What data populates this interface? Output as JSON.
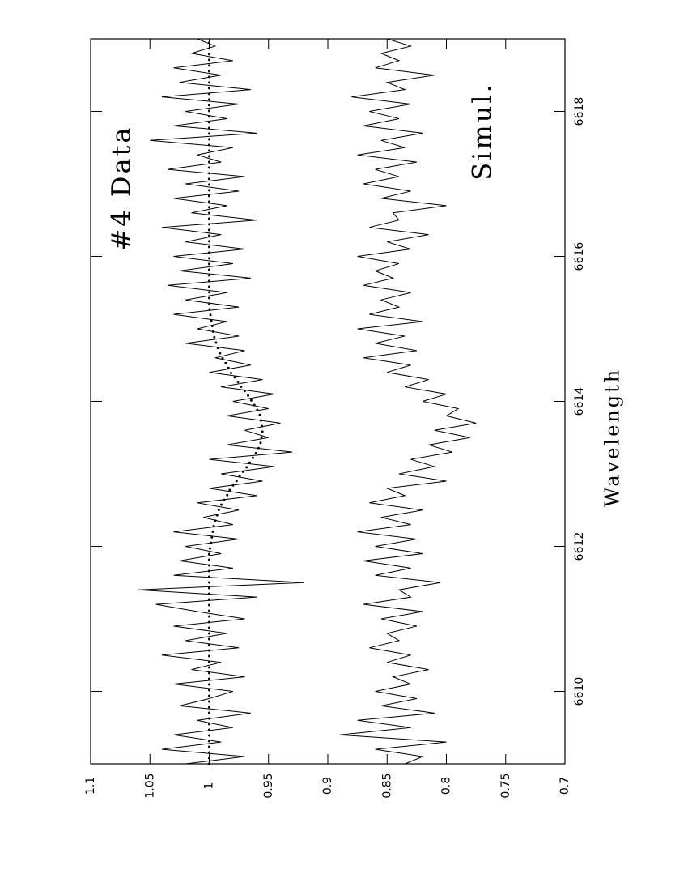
{
  "chart_data": {
    "type": "line",
    "xlabel": "Wavelength",
    "x": [
      6609.0,
      6609.1,
      6609.2,
      6609.3,
      6609.4,
      6609.5,
      6609.6,
      6609.7,
      6609.8,
      6609.9,
      6610.0,
      6610.1,
      6610.2,
      6610.3,
      6610.4,
      6610.5,
      6610.6,
      6610.7,
      6610.8,
      6610.9,
      6611.0,
      6611.1,
      6611.2,
      6611.3,
      6611.4,
      6611.5,
      6611.6,
      6611.7,
      6611.8,
      6611.9,
      6612.0,
      6612.1,
      6612.2,
      6612.3,
      6612.4,
      6612.5,
      6612.6,
      6612.7,
      6612.8,
      6612.9,
      6613.0,
      6613.1,
      6613.2,
      6613.3,
      6613.4,
      6613.5,
      6613.6,
      6613.7,
      6613.8,
      6613.9,
      6614.0,
      6614.1,
      6614.2,
      6614.3,
      6614.4,
      6614.5,
      6614.6,
      6614.7,
      6614.8,
      6614.9,
      6615.0,
      6615.1,
      6615.2,
      6615.3,
      6615.4,
      6615.5,
      6615.6,
      6615.7,
      6615.8,
      6615.9,
      6616.0,
      6616.1,
      6616.2,
      6616.3,
      6616.4,
      6616.5,
      6616.6,
      6616.7,
      6616.8,
      6616.9,
      6617.0,
      6617.1,
      6617.2,
      6617.3,
      6617.4,
      6617.5,
      6617.6,
      6617.7,
      6617.8,
      6617.9,
      6618.0,
      6618.1,
      6618.2,
      6618.3,
      6618.4,
      6618.5,
      6618.6,
      6618.7,
      6618.8,
      6618.9,
      6619.0
    ],
    "series": [
      {
        "name": "#4 Data",
        "color": "#000000",
        "style": "solid",
        "values": [
          1.02,
          0.97,
          1.04,
          0.99,
          1.03,
          0.98,
          1.01,
          0.965,
          1.025,
          1.0,
          0.98,
          1.03,
          0.97,
          1.015,
          0.99,
          1.04,
          0.975,
          1.02,
          0.985,
          1.03,
          0.97,
          1.01,
          1.045,
          0.96,
          1.06,
          0.92,
          1.03,
          0.98,
          1.025,
          0.99,
          1.02,
          0.975,
          1.03,
          0.98,
          1.005,
          0.975,
          1.01,
          0.96,
          1.0,
          0.955,
          0.99,
          0.945,
          1.0,
          0.93,
          0.985,
          0.95,
          0.97,
          0.94,
          0.985,
          0.95,
          0.98,
          0.945,
          0.99,
          0.955,
          1.0,
          0.965,
          0.995,
          0.97,
          1.02,
          0.975,
          1.01,
          0.985,
          1.03,
          0.975,
          1.02,
          0.985,
          1.035,
          0.965,
          1.025,
          0.98,
          1.03,
          0.97,
          1.02,
          0.99,
          1.04,
          0.96,
          1.015,
          0.985,
          1.03,
          0.975,
          1.02,
          0.97,
          1.035,
          0.99,
          1.01,
          0.98,
          1.05,
          0.96,
          1.03,
          0.985,
          1.02,
          0.975,
          1.04,
          0.965,
          1.025,
          0.99,
          1.03,
          0.98,
          1.015,
          0.995,
          1.01
        ]
      },
      {
        "color": "#000000",
        "style": "dotted",
        "values": [
          1,
          1,
          1,
          1,
          1,
          1,
          1,
          1,
          1,
          1,
          1,
          1,
          1,
          1,
          1,
          1,
          1,
          1,
          1,
          1,
          1,
          1,
          1,
          1,
          1,
          1,
          1,
          1,
          1,
          1,
          0.999,
          0.998,
          0.997,
          0.996,
          0.994,
          0.992,
          0.989,
          0.985,
          0.982,
          0.977,
          0.973,
          0.968,
          0.964,
          0.96,
          0.957,
          0.956,
          0.955,
          0.956,
          0.957,
          0.96,
          0.964,
          0.968,
          0.973,
          0.977,
          0.982,
          0.985,
          0.989,
          0.992,
          0.994,
          0.996,
          0.997,
          0.998,
          0.999,
          1,
          1,
          1,
          1,
          1,
          1,
          1,
          1,
          1,
          1,
          1,
          1,
          1,
          1,
          1,
          1,
          1,
          1,
          1,
          1,
          1,
          1,
          1,
          1,
          1,
          1,
          1,
          1,
          1,
          1,
          1,
          1,
          1,
          1,
          1,
          1,
          1,
          1
        ]
      },
      {
        "name": "Simul.",
        "color": "#000000",
        "style": "solid",
        "values": [
          0.835,
          0.82,
          0.86,
          0.8,
          0.89,
          0.83,
          0.875,
          0.81,
          0.855,
          0.825,
          0.86,
          0.83,
          0.845,
          0.815,
          0.85,
          0.83,
          0.865,
          0.84,
          0.85,
          0.825,
          0.855,
          0.82,
          0.87,
          0.83,
          0.84,
          0.805,
          0.86,
          0.83,
          0.87,
          0.82,
          0.86,
          0.825,
          0.875,
          0.83,
          0.855,
          0.82,
          0.865,
          0.835,
          0.85,
          0.8,
          0.84,
          0.81,
          0.83,
          0.795,
          0.815,
          0.78,
          0.81,
          0.775,
          0.8,
          0.79,
          0.82,
          0.8,
          0.835,
          0.815,
          0.85,
          0.83,
          0.87,
          0.825,
          0.86,
          0.835,
          0.875,
          0.82,
          0.865,
          0.84,
          0.855,
          0.83,
          0.87,
          0.845,
          0.86,
          0.84,
          0.875,
          0.83,
          0.85,
          0.815,
          0.865,
          0.84,
          0.845,
          0.8,
          0.855,
          0.83,
          0.87,
          0.84,
          0.86,
          0.825,
          0.875,
          0.835,
          0.855,
          0.82,
          0.87,
          0.84,
          0.865,
          0.83,
          0.88,
          0.835,
          0.85,
          0.81,
          0.86,
          0.84,
          0.855,
          0.83,
          0.85
        ]
      }
    ],
    "xlim": [
      6609,
      6619
    ],
    "xticks": [
      6610,
      6612,
      6614,
      6616,
      6618
    ],
    "ylim": [
      0.7,
      1.1
    ],
    "yticks": [
      1.1,
      1.05,
      1,
      0.95,
      0.9,
      0.85,
      0.8,
      0.75,
      0.7
    ]
  }
}
